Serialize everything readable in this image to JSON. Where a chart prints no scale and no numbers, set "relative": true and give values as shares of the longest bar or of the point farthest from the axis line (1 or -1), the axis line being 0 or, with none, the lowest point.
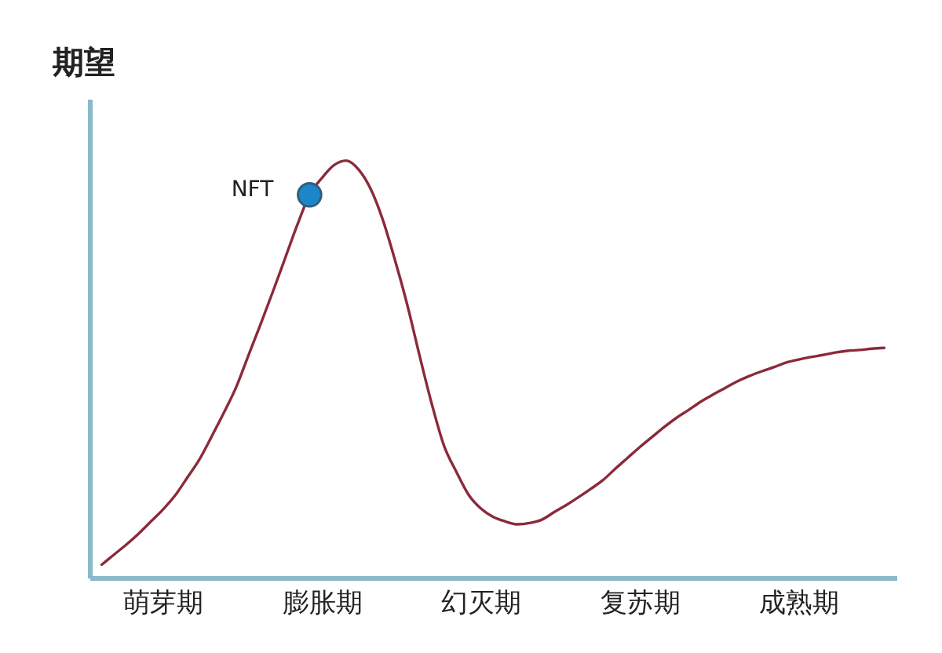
{
  "chart_data": {
    "type": "line",
    "ylabel": "期望",
    "relative": true,
    "tick_labels": "x",
    "categories": [
      null,
      null,
      null,
      null,
      null,
      "萌芽期",
      null,
      null,
      null,
      null,
      null,
      null,
      null,
      null,
      null,
      null,
      null,
      null,
      "膨胀期",
      null,
      null,
      null,
      null,
      null,
      null,
      null,
      null,
      null,
      null,
      null,
      null,
      "幻灭期",
      null,
      null,
      null,
      null,
      null,
      null,
      null,
      null,
      null,
      null,
      null,
      null,
      "复苏期",
      null,
      null,
      null,
      null,
      null,
      null,
      null,
      null,
      null,
      null,
      null,
      null,
      "成熟期",
      null,
      null,
      null,
      null,
      null,
      null,
      null
    ],
    "series": [
      {
        "color": "#8b2a3a",
        "values": [
          0.031,
          0.055,
          0.079,
          0.105,
          0.134,
          0.163,
          0.197,
          0.24,
          0.284,
          0.339,
          0.396,
          0.457,
          0.533,
          0.608,
          0.686,
          0.766,
          0.846,
          0.918,
          0.958,
          0.989,
          1.0,
          0.979,
          0.932,
          0.857,
          0.76,
          0.653,
          0.532,
          0.416,
          0.316,
          0.254,
          0.199,
          0.166,
          0.146,
          0.135,
          0.128,
          0.131,
          0.139,
          0.157,
          0.174,
          0.193,
          0.213,
          0.234,
          0.261,
          0.287,
          0.313,
          0.337,
          0.361,
          0.383,
          0.402,
          0.422,
          0.439,
          0.455,
          0.471,
          0.484,
          0.495,
          0.505,
          0.516,
          0.523,
          0.529,
          0.534,
          0.54,
          0.544,
          0.546,
          0.549,
          0.551
        ]
      },
      {
        "type": "scatter",
        "name": "NFT",
        "marker": "circle",
        "color": "#1b87c8",
        "values": [
          null,
          null,
          null,
          null,
          null,
          null,
          null,
          null,
          null,
          null,
          null,
          null,
          null,
          null,
          null,
          null,
          null,
          0.918,
          null,
          null,
          null,
          null,
          null,
          null,
          null,
          null,
          null,
          null,
          null,
          null,
          null,
          null,
          null,
          null,
          null,
          null,
          null,
          null,
          null,
          null,
          null,
          null,
          null,
          null,
          null,
          null,
          null,
          null,
          null,
          null,
          null,
          null,
          null,
          null,
          null,
          null,
          null,
          null,
          null,
          null,
          null,
          null,
          null,
          null,
          null
        ]
      }
    ]
  }
}
